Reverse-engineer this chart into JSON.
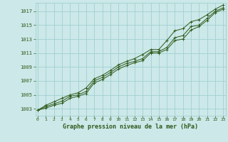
{
  "xlabel": "Graphe pression niveau de la mer (hPa)",
  "bg_color": "#cce8e8",
  "line_color": "#2d5a1b",
  "grid_color": "#99cccc",
  "x_ticks": [
    0,
    1,
    2,
    3,
    4,
    5,
    6,
    7,
    8,
    9,
    10,
    11,
    12,
    13,
    14,
    15,
    16,
    17,
    18,
    19,
    20,
    21,
    22,
    23
  ],
  "y_ticks": [
    1003,
    1005,
    1007,
    1009,
    1011,
    1013,
    1015,
    1017
  ],
  "ylim": [
    1002.0,
    1018.2
  ],
  "xlim": [
    -0.3,
    23.3
  ],
  "series": {
    "main": [
      1002.8,
      1003.3,
      1003.7,
      1004.1,
      1004.8,
      1005.0,
      1005.5,
      1007.0,
      1007.5,
      1008.2,
      1009.0,
      1009.5,
      1009.8,
      1010.2,
      1011.2,
      1011.2,
      1011.8,
      1013.2,
      1013.5,
      1014.8,
      1015.0,
      1016.0,
      1017.0,
      1017.5
    ],
    "high": [
      1002.8,
      1003.5,
      1004.0,
      1004.5,
      1005.0,
      1005.3,
      1006.0,
      1007.3,
      1007.8,
      1008.5,
      1009.3,
      1009.8,
      1010.2,
      1010.8,
      1011.5,
      1011.5,
      1012.8,
      1014.2,
      1014.5,
      1015.5,
      1015.8,
      1016.5,
      1017.3,
      1017.9
    ],
    "low": [
      1002.8,
      1003.1,
      1003.5,
      1003.8,
      1004.5,
      1004.8,
      1005.2,
      1006.7,
      1007.2,
      1007.9,
      1008.7,
      1009.2,
      1009.6,
      1009.9,
      1011.0,
      1011.0,
      1011.5,
      1012.8,
      1013.0,
      1014.3,
      1014.8,
      1015.7,
      1016.8,
      1017.3
    ]
  }
}
